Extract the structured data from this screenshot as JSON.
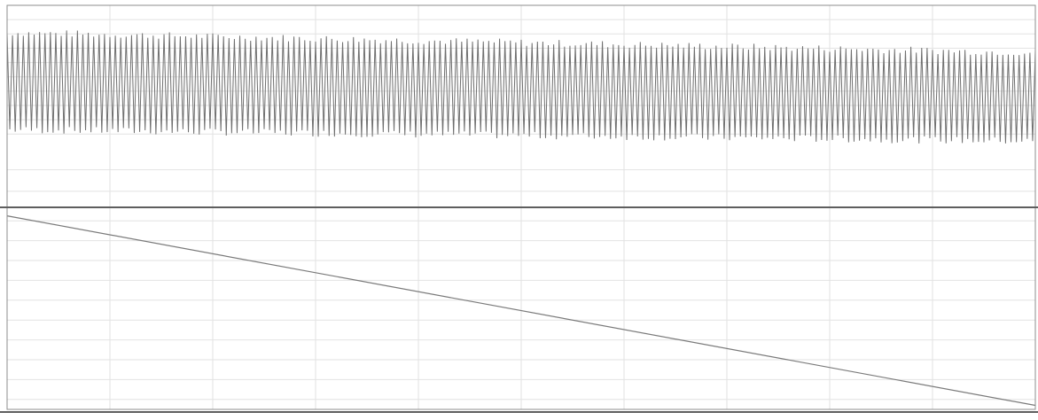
{
  "colors": {
    "background": "#ffffff",
    "grid": "#e2e2e2",
    "frame": "#8c8c8c",
    "separator": "#5e5e5e",
    "signal": "#6f6f6f",
    "ramp": "#7a7a7a",
    "label": "#9a9a9a"
  },
  "chart_data": [
    {
      "type": "line",
      "panel": "top",
      "series": [
        {
          "kind": "oscillation",
          "x_range": [
            0,
            1
          ],
          "cycles": 190,
          "upper_envelope": {
            "start": 0.86,
            "end": 0.72
          },
          "lower_envelope": {
            "start": 0.18,
            "end": 0.1
          }
        }
      ],
      "ylim": [
        -0.35,
        1.05
      ],
      "y_ticks": [
        0.95,
        0.85,
        0.75,
        0.65,
        0.55,
        0.45,
        0.35,
        0.25,
        0.15,
        -0.1,
        -0.25
      ],
      "grid": true
    },
    {
      "type": "line",
      "panel": "bottom",
      "series": [
        {
          "kind": "linear",
          "x": [
            0,
            1
          ],
          "y": [
            0.975,
            0.02
          ]
        }
      ],
      "ylim": [
        0,
        1
      ],
      "y_ticks": [
        0.95,
        0.85,
        0.75,
        0.65,
        0.55,
        0.45,
        0.35,
        0.25,
        0.15,
        0.05
      ],
      "grid": true
    }
  ],
  "x_ticks": [
    0.1,
    0.2,
    0.3,
    0.4,
    0.5,
    0.6,
    0.7,
    0.8,
    0.9
  ]
}
